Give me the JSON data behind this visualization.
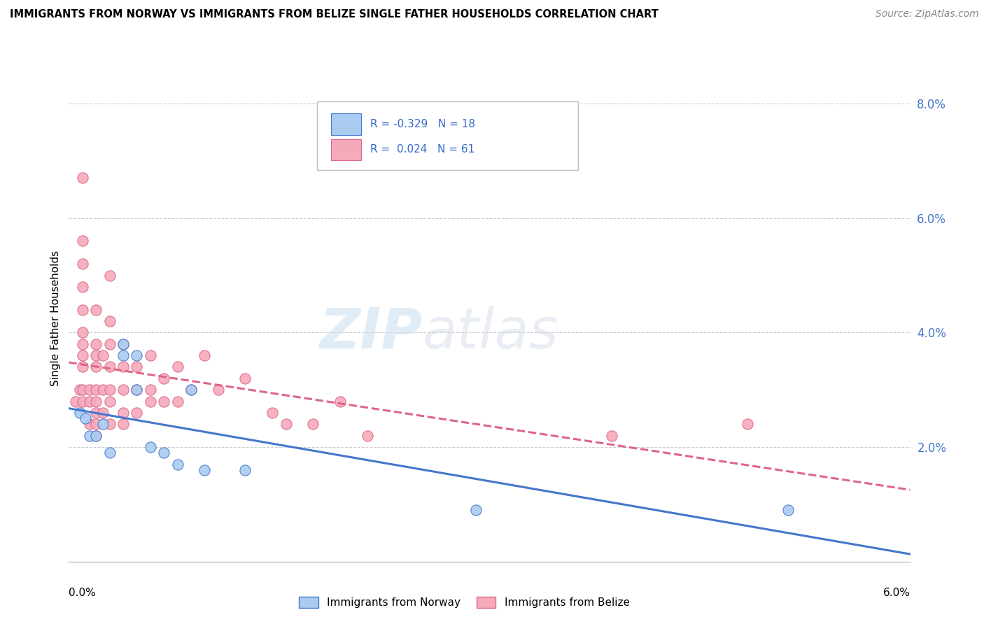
{
  "title": "IMMIGRANTS FROM NORWAY VS IMMIGRANTS FROM BELIZE SINGLE FATHER HOUSEHOLDS CORRELATION CHART",
  "source": "Source: ZipAtlas.com",
  "ylabel": "Single Father Households",
  "legend_label1": "Immigrants from Norway",
  "legend_label2": "Immigrants from Belize",
  "r_norway": -0.329,
  "n_norway": 18,
  "r_belize": 0.024,
  "n_belize": 61,
  "watermark_zip": "ZIP",
  "watermark_atlas": "atlas",
  "norway_color": "#aaccf0",
  "belize_color": "#f5aabb",
  "norway_line_color": "#4477cc",
  "belize_line_color": "#dd6688",
  "x_lim": [
    0.0,
    0.062
  ],
  "y_lim": [
    0.0,
    0.085
  ],
  "y_ticks": [
    0.0,
    0.02,
    0.04,
    0.06,
    0.08
  ],
  "y_tick_labels": [
    "",
    "2.0%",
    "4.0%",
    "6.0%",
    "8.0%"
  ],
  "norway_points": [
    [
      0.0008,
      0.026
    ],
    [
      0.0012,
      0.025
    ],
    [
      0.0015,
      0.022
    ],
    [
      0.002,
      0.022
    ],
    [
      0.0025,
      0.024
    ],
    [
      0.003,
      0.019
    ],
    [
      0.004,
      0.038
    ],
    [
      0.004,
      0.036
    ],
    [
      0.005,
      0.036
    ],
    [
      0.005,
      0.03
    ],
    [
      0.006,
      0.02
    ],
    [
      0.007,
      0.019
    ],
    [
      0.008,
      0.017
    ],
    [
      0.009,
      0.03
    ],
    [
      0.01,
      0.016
    ],
    [
      0.013,
      0.016
    ],
    [
      0.03,
      0.009
    ],
    [
      0.053,
      0.009
    ]
  ],
  "belize_points": [
    [
      0.0005,
      0.028
    ],
    [
      0.0008,
      0.03
    ],
    [
      0.001,
      0.028
    ],
    [
      0.001,
      0.03
    ],
    [
      0.001,
      0.034
    ],
    [
      0.001,
      0.036
    ],
    [
      0.001,
      0.038
    ],
    [
      0.001,
      0.04
    ],
    [
      0.001,
      0.044
    ],
    [
      0.001,
      0.048
    ],
    [
      0.001,
      0.052
    ],
    [
      0.001,
      0.056
    ],
    [
      0.001,
      0.067
    ],
    [
      0.0015,
      0.024
    ],
    [
      0.0015,
      0.028
    ],
    [
      0.0015,
      0.03
    ],
    [
      0.002,
      0.022
    ],
    [
      0.002,
      0.024
    ],
    [
      0.002,
      0.026
    ],
    [
      0.002,
      0.028
    ],
    [
      0.002,
      0.03
    ],
    [
      0.002,
      0.034
    ],
    [
      0.002,
      0.036
    ],
    [
      0.002,
      0.038
    ],
    [
      0.002,
      0.044
    ],
    [
      0.0025,
      0.026
    ],
    [
      0.0025,
      0.03
    ],
    [
      0.0025,
      0.036
    ],
    [
      0.003,
      0.024
    ],
    [
      0.003,
      0.028
    ],
    [
      0.003,
      0.03
    ],
    [
      0.003,
      0.034
    ],
    [
      0.003,
      0.038
    ],
    [
      0.003,
      0.042
    ],
    [
      0.003,
      0.05
    ],
    [
      0.004,
      0.024
    ],
    [
      0.004,
      0.026
    ],
    [
      0.004,
      0.03
    ],
    [
      0.004,
      0.034
    ],
    [
      0.004,
      0.038
    ],
    [
      0.005,
      0.026
    ],
    [
      0.005,
      0.03
    ],
    [
      0.005,
      0.034
    ],
    [
      0.006,
      0.028
    ],
    [
      0.006,
      0.03
    ],
    [
      0.006,
      0.036
    ],
    [
      0.007,
      0.028
    ],
    [
      0.007,
      0.032
    ],
    [
      0.008,
      0.028
    ],
    [
      0.008,
      0.034
    ],
    [
      0.009,
      0.03
    ],
    [
      0.01,
      0.036
    ],
    [
      0.011,
      0.03
    ],
    [
      0.013,
      0.032
    ],
    [
      0.015,
      0.026
    ],
    [
      0.016,
      0.024
    ],
    [
      0.018,
      0.024
    ],
    [
      0.02,
      0.028
    ],
    [
      0.022,
      0.022
    ],
    [
      0.04,
      0.022
    ],
    [
      0.05,
      0.024
    ]
  ]
}
